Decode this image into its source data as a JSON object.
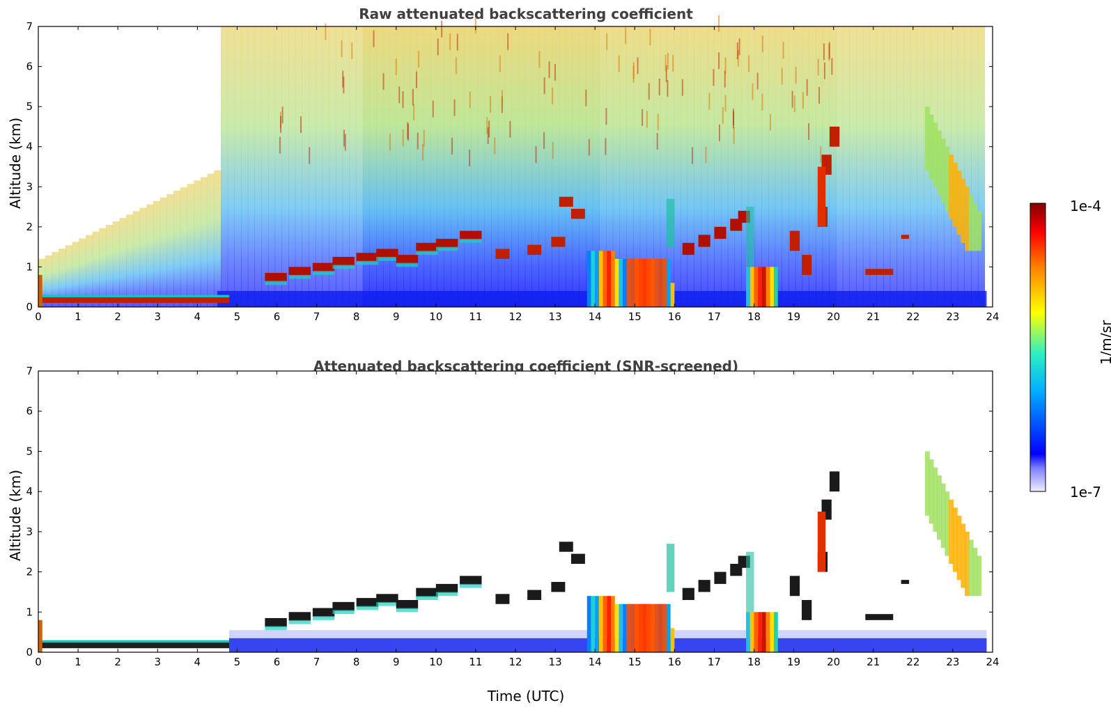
{
  "chart_data": [
    {
      "type": "heatmap",
      "title": "Raw attenuated backscattering coefficient",
      "xlabel": "",
      "ylabel": "Altitude (km)",
      "xlim": [
        0,
        24
      ],
      "ylim": [
        0,
        7
      ],
      "xticks": [
        "0",
        "1",
        "2",
        "3",
        "4",
        "5",
        "6",
        "7",
        "8",
        "9",
        "10",
        "11",
        "12",
        "13",
        "14",
        "15",
        "16",
        "17",
        "18",
        "19",
        "20",
        "21",
        "22",
        "23",
        "24"
      ],
      "yticks": [
        "0",
        "1",
        "2",
        "3",
        "4",
        "5",
        "6",
        "7"
      ],
      "features": [
        {
          "name": "surface-aerosol-layer",
          "t": [
            0,
            4.8
          ],
          "alt": [
            0.15,
            0.25
          ],
          "level": "high"
        },
        {
          "name": "rising-boundary-layer",
          "t": [
            5.5,
            10.8
          ],
          "alt": [
            0.7,
            1.8
          ],
          "level": "high"
        },
        {
          "name": "thick-cloud-1",
          "t": [
            13.8,
            16.0
          ],
          "alt": [
            0,
            1.5
          ],
          "level": "high"
        },
        {
          "name": "thick-cloud-2",
          "t": [
            17.8,
            18.6
          ],
          "alt": [
            0,
            1.1
          ],
          "level": "high"
        },
        {
          "name": "cirrus",
          "t": [
            22.3,
            23.8
          ],
          "alt": [
            1.5,
            5.0
          ],
          "level": "medium"
        }
      ]
    },
    {
      "type": "heatmap",
      "title": "Attenuated backscattering coefficient (SNR-screened)",
      "xlabel": "Time (UTC)",
      "ylabel": "Altitude (km)",
      "xlim": [
        0,
        24
      ],
      "ylim": [
        0,
        7
      ],
      "xticks": [
        "0",
        "1",
        "2",
        "3",
        "4",
        "5",
        "6",
        "7",
        "8",
        "9",
        "10",
        "11",
        "12",
        "13",
        "14",
        "15",
        "16",
        "17",
        "18",
        "19",
        "20",
        "21",
        "22",
        "23",
        "24"
      ],
      "yticks": [
        "0",
        "1",
        "2",
        "3",
        "4",
        "5",
        "6",
        "7"
      ]
    }
  ],
  "colorbar": {
    "label": "1/m/sr",
    "min_label": "1e-7",
    "max_label": "1e-4",
    "colors": [
      "#e8e8f8",
      "#0000ff",
      "#00bfff",
      "#40ffb0",
      "#ffff00",
      "#ff8000",
      "#ff0000",
      "#800000"
    ]
  }
}
